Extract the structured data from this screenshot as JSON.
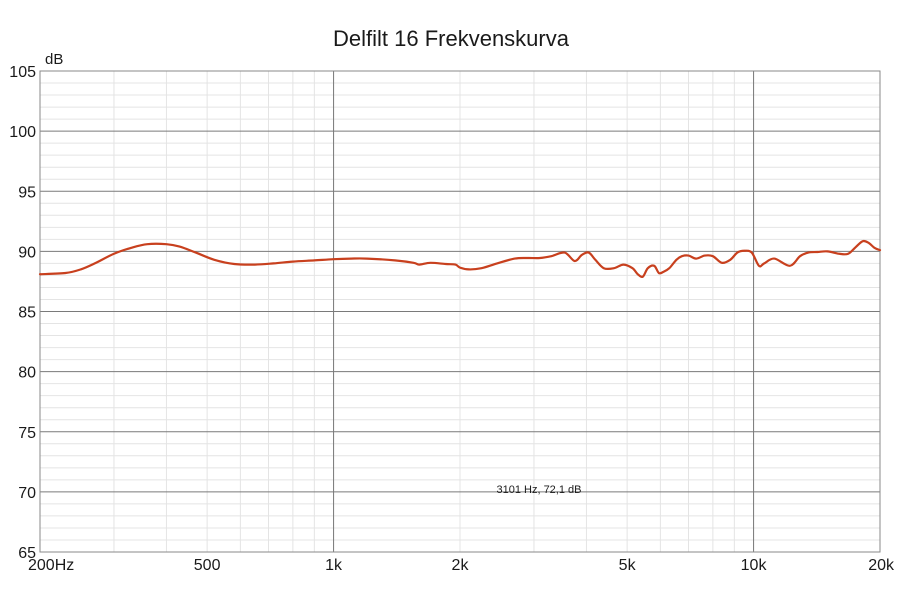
{
  "chart_data": {
    "type": "line",
    "title": "Delfilt 16 Frekvenskurva",
    "ylabel": "dB",
    "xlabel": "",
    "x_scale": "log",
    "xlim": [
      200,
      20000
    ],
    "ylim": [
      65,
      105
    ],
    "grid": true,
    "x_ticks": [
      {
        "value": 200,
        "label": "200Hz"
      },
      {
        "value": 500,
        "label": "500"
      },
      {
        "value": 1000,
        "label": "1k"
      },
      {
        "value": 2000,
        "label": "2k"
      },
      {
        "value": 5000,
        "label": "5k"
      },
      {
        "value": 10000,
        "label": "10k"
      },
      {
        "value": 20000,
        "label": "20k"
      }
    ],
    "y_ticks": [
      {
        "value": 65,
        "label": "65"
      },
      {
        "value": 70,
        "label": "70"
      },
      {
        "value": 75,
        "label": "75"
      },
      {
        "value": 80,
        "label": "80"
      },
      {
        "value": 85,
        "label": "85"
      },
      {
        "value": 90,
        "label": "90"
      },
      {
        "value": 95,
        "label": "95"
      },
      {
        "value": 100,
        "label": "100"
      },
      {
        "value": 105,
        "label": "105"
      }
    ],
    "cursor_readout": "3101 Hz, 72,1 dB",
    "series": [
      {
        "color": "#c8401e",
        "x": [
          200,
          230,
          250,
          270,
          300,
          330,
          360,
          400,
          430,
          470,
          520,
          580,
          650,
          720,
          800,
          900,
          1000,
          1100,
          1200,
          1400,
          1550,
          1600,
          1700,
          1850,
          1950,
          2000,
          2100,
          2250,
          2450,
          2700,
          2900,
          3100,
          3300,
          3550,
          3750,
          3900,
          4050,
          4200,
          4400,
          4650,
          4900,
          5150,
          5300,
          5450,
          5600,
          5800,
          5950,
          6100,
          6300,
          6550,
          6750,
          7000,
          7300,
          7650,
          8000,
          8400,
          8800,
          9150,
          9500,
          9900,
          10300,
          10600,
          11200,
          12200,
          12900,
          13500,
          14200,
          15000,
          16000,
          16800,
          17500,
          18200,
          18800,
          19400,
          20000
        ],
        "values": [
          88.1,
          88.2,
          88.5,
          89.0,
          89.8,
          90.3,
          90.6,
          90.6,
          90.4,
          89.9,
          89.3,
          88.95,
          88.9,
          89.0,
          89.15,
          89.25,
          89.35,
          89.4,
          89.4,
          89.25,
          89.05,
          88.9,
          89.05,
          88.95,
          88.9,
          88.65,
          88.5,
          88.6,
          89.0,
          89.4,
          89.45,
          89.45,
          89.6,
          89.9,
          89.2,
          89.7,
          89.9,
          89.3,
          88.6,
          88.6,
          88.9,
          88.6,
          88.1,
          87.9,
          88.6,
          88.8,
          88.2,
          88.3,
          88.6,
          89.3,
          89.6,
          89.65,
          89.4,
          89.65,
          89.6,
          89.05,
          89.3,
          89.9,
          90.05,
          89.9,
          88.8,
          89.0,
          89.4,
          88.8,
          89.6,
          89.9,
          89.95,
          90.0,
          89.8,
          89.8,
          90.35,
          90.85,
          90.7,
          90.3,
          90.1
        ]
      }
    ]
  }
}
